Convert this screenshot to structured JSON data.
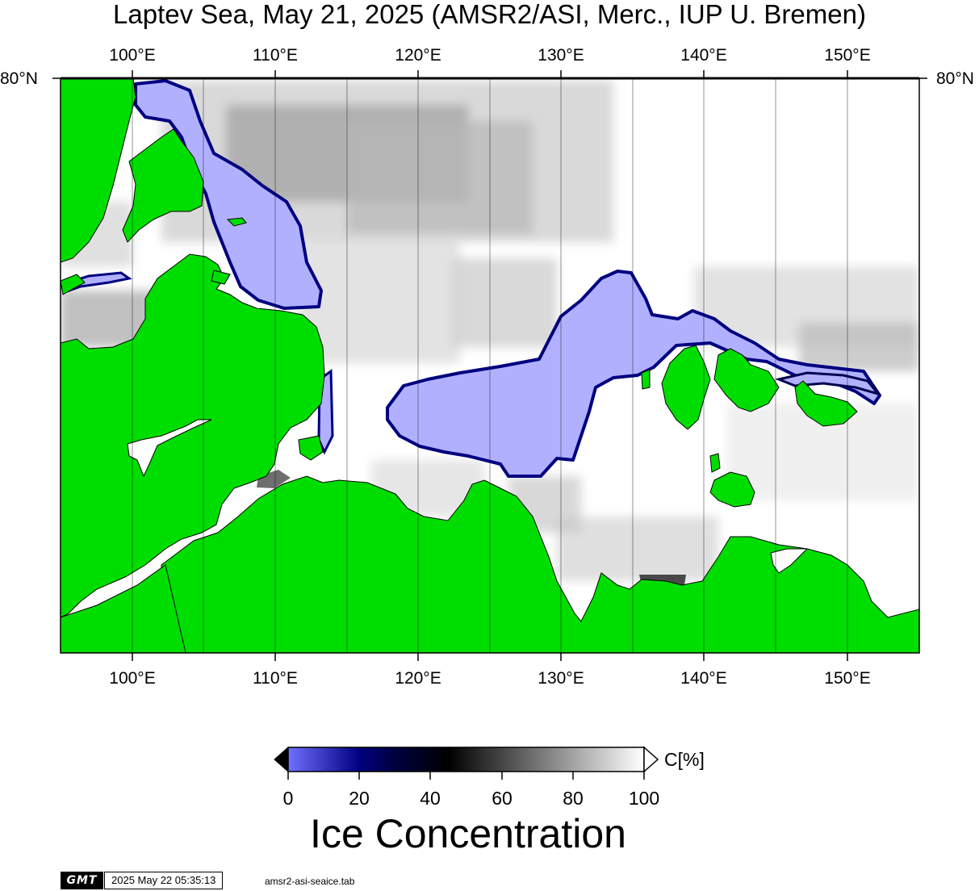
{
  "title": "Laptev Sea, May 21, 2025 (AMSR2/ASI, Merc., IUP U. Bremen)",
  "map": {
    "region": "Laptev Sea",
    "projection": "Merc.",
    "lon_range_deg": [
      95,
      155
    ],
    "lat_label": "80°N",
    "lon_labels": [
      "100°E",
      "110°E",
      "120°E",
      "130°E",
      "140°E",
      "150°E"
    ],
    "lon_values": [
      100,
      110,
      120,
      130,
      140,
      150
    ],
    "gridline_lons": [
      100,
      105,
      110,
      115,
      120,
      125,
      130,
      135,
      140,
      145,
      150
    ],
    "colors": {
      "land": "#00dd00",
      "open_water": "#b0b0ff",
      "ice_full": "#ffffff",
      "frame": "#000000"
    }
  },
  "colorbar": {
    "unit": "C[%]",
    "tick_labels": [
      "0",
      "20",
      "40",
      "60",
      "80",
      "100"
    ],
    "tick_values": [
      0,
      20,
      40,
      60,
      80,
      100
    ],
    "title": "Ice Concentration",
    "stops": [
      {
        "value": 0,
        "color": "#7070ff"
      },
      {
        "value": 20,
        "color": "#000080"
      },
      {
        "value": 30,
        "color": "#000040"
      },
      {
        "value": 45,
        "color": "#000000"
      },
      {
        "value": 100,
        "color": "#ffffff"
      }
    ]
  },
  "footer": {
    "logo": "GMT",
    "timestamp": "2025 May 22 05:35:13",
    "filename": "amsr2-asi-seaice.tab"
  }
}
